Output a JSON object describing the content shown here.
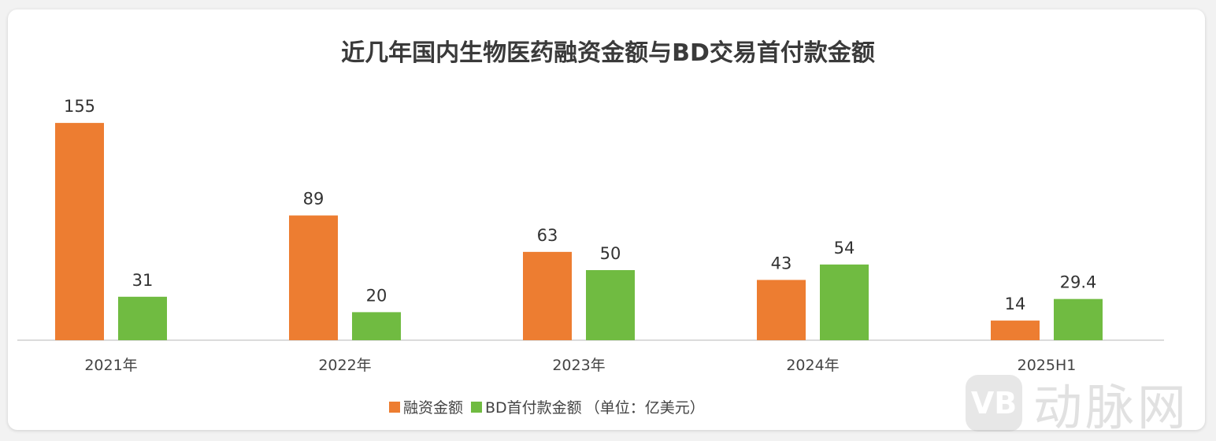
{
  "chart_data": {
    "type": "bar",
    "title": "近几年国内生物医药融资金额与BD交易首付款金额",
    "categories": [
      "2021年",
      "2022年",
      "2023年",
      "2024年",
      "2025H1"
    ],
    "series": [
      {
        "name": "融资金额",
        "color": "#ed7d31",
        "values": [
          155,
          89,
          63,
          43,
          14
        ],
        "labels": [
          "155",
          "89",
          "63",
          "43",
          "14"
        ]
      },
      {
        "name": "BD首付款金额",
        "color": "#70bb41",
        "values": [
          31,
          20,
          50,
          54,
          29.4
        ],
        "labels": [
          "31",
          "20",
          "50",
          "54",
          "29.4"
        ]
      }
    ],
    "unit_note": "（单位：亿美元）",
    "grid": false,
    "legend": "bottom"
  },
  "watermark": {
    "logo": "VB",
    "text": "动脉网"
  }
}
